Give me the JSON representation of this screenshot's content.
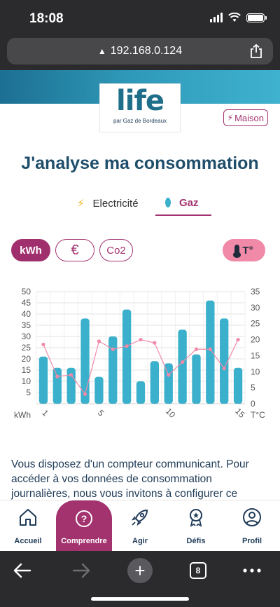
{
  "status_bar": {
    "time": "18:08"
  },
  "browser": {
    "url": "192.168.0.124",
    "tabs_count": "8"
  },
  "brand": {
    "logo_text_main": "life",
    "logo_sub": "par Gaz de Bordeaux"
  },
  "header": {
    "badge_label": "Maison"
  },
  "page": {
    "title": "J'analyse ma consommation"
  },
  "energy_tabs": [
    {
      "label": "Electricité",
      "icon": "bolt-icon",
      "active": false
    },
    {
      "label": "Gaz",
      "icon": "flame-icon",
      "active": true
    }
  ],
  "units": {
    "kwh": "kWh",
    "eur": "€",
    "co2": "Co2",
    "temp": "T°"
  },
  "chart_data": {
    "type": "bar",
    "x": [
      1,
      2,
      3,
      4,
      5,
      6,
      7,
      8,
      9,
      10,
      11,
      12,
      13,
      14,
      15
    ],
    "xticks": [
      "1",
      "5",
      "10",
      "15"
    ],
    "series": [
      {
        "type": "bar",
        "axis": "left",
        "color": "#3ab0cc",
        "values": [
          21,
          16,
          16,
          38,
          12,
          30,
          42,
          10,
          19,
          18,
          33,
          22,
          46,
          38,
          16
        ]
      },
      {
        "type": "line",
        "axis": "right",
        "color": "#f08aa8",
        "values": [
          18.5,
          8.5,
          9,
          3,
          19.5,
          17,
          18,
          20,
          19,
          9,
          13,
          17,
          17,
          11,
          20
        ]
      }
    ],
    "ylabel_left": "kWh",
    "ylabel_right": "T°C",
    "ylim_left": [
      0,
      50
    ],
    "ylim_right": [
      0,
      35
    ],
    "yticks_left": [
      5,
      10,
      15,
      20,
      25,
      30,
      35,
      40,
      45,
      50
    ],
    "yticks_right": [
      0,
      5,
      10,
      15,
      20,
      25,
      30,
      35
    ],
    "grid": true
  },
  "info_text": "Vous disposez d'un compteur communicant. Pour accéder à vos données de consommation journalières, nous vous invitons à configurer ce",
  "app_nav": [
    {
      "label": "Accueil",
      "icon": "home-icon",
      "active": false
    },
    {
      "label": "Comprendre",
      "icon": "question-icon",
      "active": true
    },
    {
      "label": "Agir",
      "icon": "rocket-icon",
      "active": false
    },
    {
      "label": "Défis",
      "icon": "medal-icon",
      "active": false
    },
    {
      "label": "Profil",
      "icon": "profile-icon",
      "active": false
    }
  ]
}
